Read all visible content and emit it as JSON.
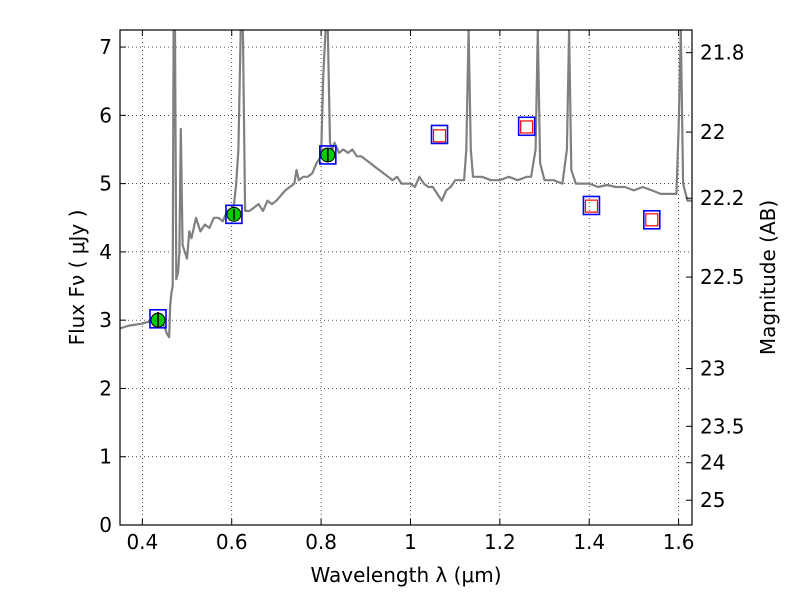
{
  "chart_data": {
    "type": "line",
    "xlabel": "Wavelength  λ (μm)",
    "ylabel": "Flux  Fν  ( μJy )",
    "ylabel_right": "Magnitude (AB)",
    "xlim": [
      0.35,
      1.63
    ],
    "ylim": [
      0,
      7.25
    ],
    "x_ticks": [
      0.4,
      0.6,
      0.8,
      1.0,
      1.2,
      1.4,
      1.6
    ],
    "x_tick_labels": [
      "0.4",
      "0.6",
      "0.8",
      "1",
      "1.2",
      "1.4",
      "1.6"
    ],
    "y_ticks": [
      0,
      1,
      2,
      3,
      4,
      5,
      6,
      7
    ],
    "y_tick_labels": [
      "0",
      "1",
      "2",
      "3",
      "4",
      "5",
      "6",
      "7"
    ],
    "right_axis": {
      "ticks_mag": [
        21.8,
        22,
        22.2,
        22.5,
        23,
        23.5,
        24,
        25
      ],
      "tick_labels": [
        "21.8",
        "22",
        "22.2",
        "22.5",
        "23",
        "23.5",
        "24",
        "25"
      ]
    },
    "grid": true,
    "series": [
      {
        "kind": "template_spectrum",
        "color": "#808080",
        "x": [
          0.35,
          0.36,
          0.37,
          0.38,
          0.39,
          0.4,
          0.41,
          0.42,
          0.43,
          0.44,
          0.445,
          0.45,
          0.455,
          0.46,
          0.462,
          0.465,
          0.468,
          0.47,
          0.473,
          0.476,
          0.48,
          0.483,
          0.486,
          0.49,
          0.495,
          0.5,
          0.505,
          0.51,
          0.52,
          0.53,
          0.54,
          0.55,
          0.56,
          0.57,
          0.58,
          0.59,
          0.6,
          0.605,
          0.61,
          0.615,
          0.62,
          0.625,
          0.63,
          0.64,
          0.65,
          0.66,
          0.67,
          0.68,
          0.69,
          0.7,
          0.72,
          0.74,
          0.745,
          0.75,
          0.76,
          0.77,
          0.78,
          0.79,
          0.8,
          0.805,
          0.81,
          0.815,
          0.82,
          0.825,
          0.83,
          0.84,
          0.85,
          0.86,
          0.87,
          0.88,
          0.89,
          0.9,
          0.91,
          0.92,
          0.93,
          0.94,
          0.95,
          0.96,
          0.97,
          0.98,
          0.99,
          1.0,
          1.01,
          1.02,
          1.03,
          1.04,
          1.05,
          1.06,
          1.07,
          1.08,
          1.09,
          1.1,
          1.12,
          1.125,
          1.13,
          1.135,
          1.14,
          1.16,
          1.18,
          1.2,
          1.22,
          1.24,
          1.26,
          1.27,
          1.28,
          1.285,
          1.29,
          1.3,
          1.32,
          1.34,
          1.35,
          1.355,
          1.36,
          1.37,
          1.4,
          1.42,
          1.44,
          1.46,
          1.48,
          1.5,
          1.52,
          1.54,
          1.56,
          1.58,
          1.595,
          1.6,
          1.605,
          1.61,
          1.62,
          1.63
        ],
        "y": [
          2.88,
          2.9,
          2.92,
          2.93,
          2.94,
          2.95,
          2.97,
          2.98,
          2.99,
          2.98,
          2.95,
          2.9,
          2.8,
          2.75,
          3.2,
          3.4,
          3.5,
          7.25,
          7.25,
          3.6,
          3.7,
          4.0,
          5.8,
          4.1,
          4.0,
          3.9,
          4.3,
          4.2,
          4.5,
          4.3,
          4.4,
          4.35,
          4.5,
          4.5,
          4.45,
          4.6,
          4.6,
          4.7,
          5.0,
          5.5,
          7.25,
          7.25,
          4.6,
          4.6,
          4.65,
          4.7,
          4.6,
          4.75,
          4.7,
          4.75,
          4.9,
          5.0,
          5.2,
          5.05,
          5.1,
          5.1,
          5.15,
          5.3,
          5.4,
          6.6,
          7.25,
          7.25,
          5.6,
          5.5,
          5.6,
          5.45,
          5.5,
          5.45,
          5.5,
          5.4,
          5.4,
          5.35,
          5.3,
          5.25,
          5.2,
          5.15,
          5.1,
          5.05,
          5.1,
          5.0,
          5.0,
          5.0,
          4.95,
          5.1,
          5.0,
          4.95,
          4.95,
          4.85,
          4.75,
          4.9,
          4.95,
          5.05,
          5.05,
          5.5,
          7.25,
          5.5,
          5.1,
          5.1,
          5.05,
          5.05,
          5.1,
          5.05,
          5.1,
          5.1,
          5.5,
          7.25,
          5.3,
          5.05,
          5.05,
          5.0,
          5.5,
          7.25,
          5.2,
          5.0,
          5.0,
          4.95,
          4.98,
          4.95,
          4.95,
          4.9,
          4.95,
          4.9,
          4.85,
          4.85,
          4.85,
          5.8,
          7.25,
          5.0,
          4.75,
          4.75
        ]
      },
      {
        "kind": "model_fluxes",
        "marker": "square-open",
        "color": "#0000ff",
        "x": [
          0.435,
          0.605,
          0.815,
          1.065,
          1.26,
          1.405,
          1.54
        ],
        "y": [
          3.02,
          4.55,
          5.42,
          5.72,
          5.84,
          4.68,
          4.47
        ]
      },
      {
        "kind": "observed_fluxes",
        "marker": "circle-filled",
        "color": "#00cc00",
        "x": [
          0.435,
          0.605,
          0.815
        ],
        "y": [
          3.0,
          4.55,
          5.42
        ],
        "yerr": [
          0.12,
          0.08,
          0.1
        ]
      },
      {
        "kind": "upper_limits",
        "marker": "square-open",
        "color": "#ff0000",
        "x": [
          1.065,
          1.26,
          1.405,
          1.54
        ],
        "y": [
          5.7,
          5.83,
          4.67,
          4.47
        ]
      }
    ]
  }
}
